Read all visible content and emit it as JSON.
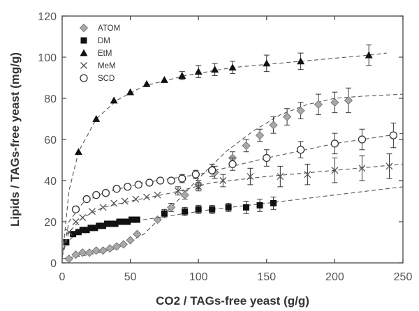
{
  "chart_data": {
    "type": "scatter",
    "xlabel": "CO2 / TAGs-free yeast (g/g)",
    "ylabel": "Lipids / TAGs-free yeast (mg/g)",
    "xlim": [
      0,
      250
    ],
    "ylim": [
      0,
      120
    ],
    "xticks": [
      "0",
      "50",
      "100",
      "150",
      "200",
      "250"
    ],
    "yticks": [
      "0",
      "20",
      "40",
      "60",
      "80",
      "100",
      "120"
    ],
    "grid": false,
    "legend_position": "top-left",
    "series": [
      {
        "name": "ATOM",
        "marker": "diamond",
        "color": "#a9a9a9",
        "x": [
          5,
          10,
          15,
          20,
          25,
          30,
          35,
          40,
          45,
          50,
          55,
          70,
          80,
          90,
          100,
          112,
          125,
          135,
          145,
          155,
          165,
          175,
          188,
          200,
          210
        ],
        "y": [
          2,
          4,
          5,
          5,
          6,
          6,
          7,
          8,
          9,
          11,
          14,
          21,
          27,
          33,
          38,
          44,
          51,
          57,
          62,
          67,
          71,
          74,
          77,
          78,
          79
        ],
        "err": [
          0,
          0,
          0,
          0,
          0,
          0,
          0,
          0,
          0,
          0,
          0,
          0,
          2,
          2,
          2,
          3,
          3,
          3,
          3,
          4,
          4,
          4,
          5,
          5,
          6
        ],
        "fit": [
          [
            0,
            2
          ],
          [
            20,
            4
          ],
          [
            40,
            7
          ],
          [
            60,
            14
          ],
          [
            80,
            27
          ],
          [
            100,
            41
          ],
          [
            120,
            54
          ],
          [
            140,
            64
          ],
          [
            160,
            72
          ],
          [
            180,
            77
          ],
          [
            200,
            80
          ],
          [
            220,
            81
          ],
          [
            250,
            82
          ]
        ]
      },
      {
        "name": "DM",
        "marker": "square",
        "color": "#111111",
        "x": [
          3,
          8,
          12,
          15,
          18,
          21,
          24,
          27,
          30,
          33,
          36,
          39,
          42,
          45,
          48,
          51,
          55,
          75,
          90,
          100,
          110,
          122,
          135,
          145,
          155
        ],
        "y": [
          10,
          14,
          15,
          16,
          16,
          17,
          17,
          18,
          18,
          19,
          19,
          19,
          20,
          20,
          20,
          21,
          21,
          24,
          25,
          26,
          26,
          27,
          27,
          28,
          29
        ],
        "err": [
          0,
          0,
          0,
          0,
          0,
          0,
          0,
          0,
          0,
          0,
          0,
          0,
          0,
          0,
          0,
          0,
          0,
          2,
          2,
          2,
          2,
          2,
          3,
          3,
          3
        ],
        "fit": [
          [
            2,
            9
          ],
          [
            10,
            14
          ],
          [
            25,
            17
          ],
          [
            50,
            20
          ],
          [
            80,
            23
          ],
          [
            110,
            26
          ],
          [
            150,
            29
          ],
          [
            200,
            33
          ],
          [
            250,
            37
          ]
        ]
      },
      {
        "name": "EtM",
        "marker": "triangle",
        "color": "#111111",
        "x": [
          12,
          25,
          38,
          50,
          62,
          75,
          88,
          100,
          112,
          125,
          150,
          175,
          225
        ],
        "y": [
          54,
          70,
          79,
          83,
          87,
          89,
          91,
          93,
          94,
          95,
          97,
          98,
          101
        ],
        "err": [
          0,
          0,
          0,
          0,
          0,
          0,
          2,
          3,
          3,
          3,
          4,
          4,
          5
        ],
        "fit": [
          [
            0,
            2
          ],
          [
            5,
            35
          ],
          [
            12,
            54
          ],
          [
            25,
            70
          ],
          [
            40,
            79
          ],
          [
            60,
            86
          ],
          [
            90,
            91
          ],
          [
            125,
            95
          ],
          [
            175,
            98
          ],
          [
            225,
            101
          ],
          [
            238,
            102
          ]
        ]
      },
      {
        "name": "MeM",
        "marker": "cross",
        "color": "#555555",
        "x": [
          5,
          10,
          15,
          22,
          30,
          38,
          46,
          54,
          62,
          70,
          85,
          100,
          118,
          138,
          160,
          180,
          200,
          220,
          240
        ],
        "y": [
          15,
          20,
          22,
          25,
          27,
          29,
          30,
          31,
          32,
          33,
          35,
          37,
          40,
          42,
          42,
          43,
          45,
          46,
          47
        ],
        "err": [
          0,
          0,
          0,
          0,
          0,
          0,
          0,
          0,
          0,
          0,
          2,
          2,
          3,
          4,
          5,
          5,
          6,
          6,
          6
        ],
        "fit": [
          [
            0,
            3
          ],
          [
            5,
            15
          ],
          [
            15,
            22
          ],
          [
            30,
            27
          ],
          [
            50,
            30
          ],
          [
            80,
            34
          ],
          [
            110,
            39
          ],
          [
            150,
            42
          ],
          [
            200,
            45
          ],
          [
            250,
            48
          ]
        ]
      },
      {
        "name": "SCD",
        "marker": "circle",
        "color": "#333333",
        "x": [
          10,
          18,
          25,
          32,
          40,
          48,
          56,
          64,
          72,
          80,
          88,
          98,
          110,
          125,
          150,
          175,
          200,
          220,
          243
        ],
        "y": [
          26,
          31,
          33,
          34,
          36,
          37,
          38,
          39,
          40,
          40,
          41,
          43,
          45,
          48,
          51,
          55,
          58,
          60,
          62
        ],
        "err": [
          0,
          0,
          0,
          0,
          0,
          0,
          0,
          0,
          0,
          0,
          2,
          2,
          3,
          3,
          4,
          4,
          5,
          5,
          6
        ],
        "fit": [
          [
            0,
            3
          ],
          [
            5,
            20
          ],
          [
            15,
            29
          ],
          [
            30,
            34
          ],
          [
            60,
            39
          ],
          [
            100,
            43
          ],
          [
            150,
            51
          ],
          [
            200,
            58
          ],
          [
            250,
            63
          ]
        ]
      }
    ]
  }
}
